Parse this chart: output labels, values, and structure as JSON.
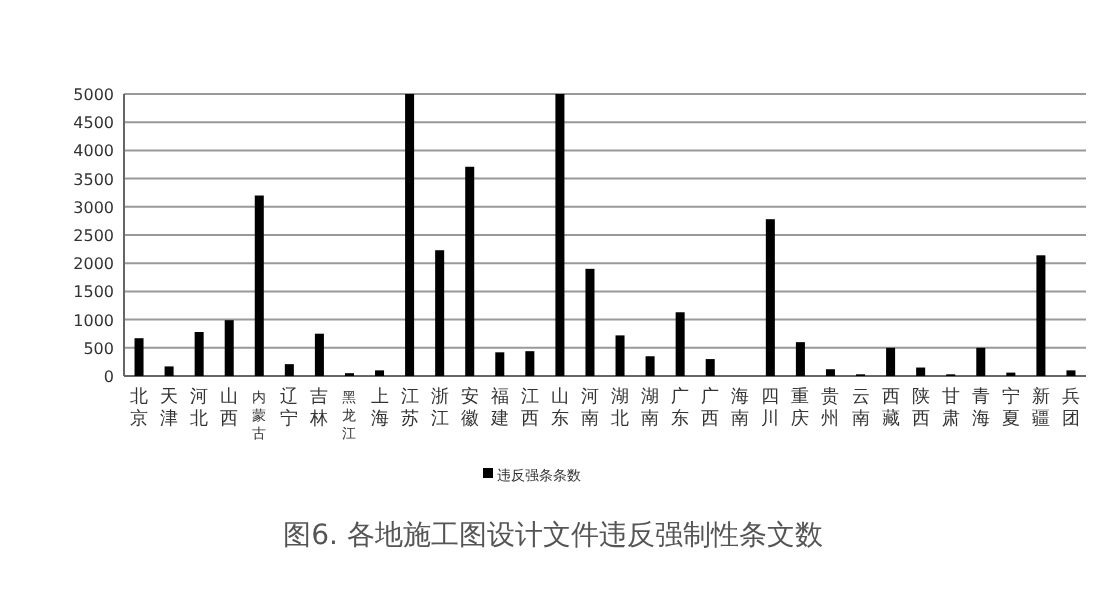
{
  "chart_data": {
    "type": "bar",
    "title": "图6.    各地施工图设计文件违反强制性条文数",
    "categories": [
      "北京",
      "天津",
      "河北",
      "山西",
      "内蒙古",
      "辽宁",
      "吉林",
      "黑龙江",
      "上海",
      "江苏",
      "浙江",
      "安徽",
      "福建",
      "江西",
      "山东",
      "河南",
      "湖北",
      "湖南",
      "广东",
      "广西",
      "海南",
      "四川",
      "重庆",
      "贵州",
      "云南",
      "西藏",
      "陕西",
      "甘肃",
      "青海",
      "宁夏",
      "新疆",
      "兵团"
    ],
    "series": [
      {
        "name": "违反强条条数",
        "color": "#000000",
        "values": [
          670,
          170,
          780,
          990,
          3200,
          210,
          750,
          50,
          100,
          5000,
          2230,
          3710,
          420,
          440,
          5000,
          1900,
          720,
          350,
          1130,
          300,
          0,
          2780,
          600,
          120,
          30,
          500,
          150,
          30,
          500,
          60,
          2140,
          100
        ]
      }
    ],
    "ylim": [
      0,
      5000
    ],
    "yticks": [
      0,
      500,
      1000,
      1500,
      2000,
      2500,
      3000,
      3500,
      4000,
      4500,
      5000
    ],
    "grid": "y",
    "legend": "bottom"
  }
}
